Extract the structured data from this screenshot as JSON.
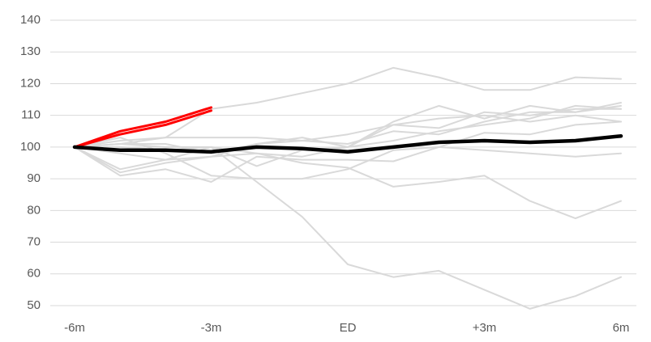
{
  "chart_data": {
    "type": "line",
    "categories": [
      "-6m",
      null,
      null,
      "-3m",
      null,
      null,
      "ED",
      null,
      null,
      "+3m",
      null,
      null,
      "6m"
    ],
    "ylim": [
      50,
      140
    ],
    "yticks": [
      50,
      60,
      70,
      80,
      90,
      100,
      110,
      120,
      130,
      140
    ],
    "grid": true,
    "series": [
      {
        "color": "#d9d9d9",
        "values": [
          100,
          101,
          103,
          112,
          114,
          117,
          120,
          125,
          122,
          118,
          118,
          122,
          121.5
        ]
      },
      {
        "color": "#d9d9d9",
        "values": [
          100,
          100,
          99,
          100,
          98,
          95,
          93.5,
          87.5,
          89,
          91,
          83,
          77.5,
          83
        ]
      },
      {
        "color": "#d9d9d9",
        "values": [
          100,
          101,
          100,
          100,
          89,
          78,
          63,
          59,
          61,
          55,
          49,
          53,
          59
        ]
      },
      {
        "color": "#d9d9d9",
        "values": [
          100,
          91,
          93,
          89,
          97,
          96,
          96,
          95.5,
          100,
          104.5,
          104,
          107,
          108
        ]
      },
      {
        "color": "#d9d9d9",
        "values": [
          100,
          92,
          95,
          97,
          98,
          97,
          100,
          108,
          113,
          109,
          113,
          111,
          114
        ]
      },
      {
        "color": "#d9d9d9",
        "values": [
          100,
          98,
          96,
          100,
          94,
          99,
          100,
          107,
          106,
          111,
          110,
          112,
          112
        ]
      },
      {
        "color": "#d9d9d9",
        "values": [
          100,
          102,
          103,
          103,
          103,
          102,
          104,
          107,
          109,
          110,
          108,
          110,
          108
        ]
      },
      {
        "color": "#d9d9d9",
        "values": [
          100,
          103,
          98,
          91,
          90,
          90,
          93,
          99,
          100,
          99,
          98,
          97,
          98
        ]
      },
      {
        "color": "#d9d9d9",
        "values": [
          100,
          101,
          101,
          98,
          101,
          102,
          101,
          105,
          104,
          108,
          111,
          111,
          113
        ]
      },
      {
        "color": "#d9d9d9",
        "values": [
          100,
          93,
          96,
          97,
          101,
          103,
          100,
          102,
          105,
          107,
          109,
          113,
          112
        ]
      },
      {
        "color": "#ff0000",
        "values": [
          100,
          104,
          107,
          111.5,
          null,
          null,
          null,
          null,
          null,
          null,
          null,
          null,
          null
        ]
      },
      {
        "color": "#ff0000",
        "values": [
          100,
          105,
          108,
          112.5,
          null,
          null,
          null,
          null,
          null,
          null,
          null,
          null,
          null
        ]
      },
      {
        "color": "#000000",
        "values": [
          100,
          99,
          99,
          98.5,
          100,
          99.5,
          98.5,
          100,
          101.5,
          102,
          101.5,
          102,
          103.5
        ]
      }
    ]
  }
}
